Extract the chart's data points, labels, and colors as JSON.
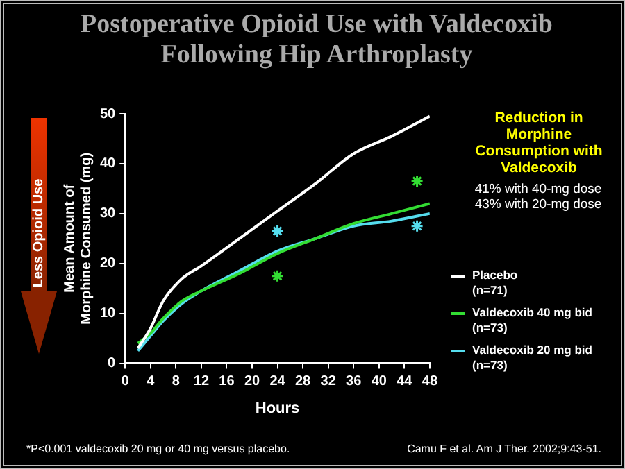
{
  "chart_data": {
    "type": "line",
    "title": "Postoperative Opioid Use with Valdecoxib Following Hip Arthroplasty",
    "xlabel": "Hours",
    "ylabel": "Mean Amount of Morphine Consumed (mg)",
    "xlim": [
      0,
      48
    ],
    "xticks": [
      0,
      4,
      8,
      12,
      16,
      20,
      24,
      28,
      32,
      36,
      40,
      44,
      48
    ],
    "ylim": [
      0,
      50
    ],
    "yticks": [
      0,
      10,
      20,
      30,
      40,
      50
    ],
    "grid": false,
    "legend": "right",
    "marker": "none",
    "line_style": "solid",
    "series": [
      {
        "name": "Placebo (n=71)",
        "color": "#ffffff",
        "x": [
          2,
          4,
          6,
          9,
          12,
          18,
          24,
          30,
          36,
          42,
          48
        ],
        "values": [
          3,
          7,
          12.5,
          17,
          19.5,
          25,
          30.5,
          36,
          42,
          45.5,
          49.5
        ]
      },
      {
        "name": "Valdecoxib 40 mg bid (n=73)",
        "color": "#33dd33",
        "x": [
          2,
          4,
          6,
          9,
          12,
          18,
          24,
          30,
          36,
          42,
          48
        ],
        "values": [
          4,
          6,
          9,
          12.5,
          14.5,
          18,
          22,
          25,
          28,
          30,
          32
        ]
      },
      {
        "name": "Valdecoxib 20 mg bid (n=73)",
        "color": "#55ddee",
        "x": [
          2,
          4,
          6,
          9,
          12,
          18,
          24,
          30,
          36,
          42,
          48
        ],
        "values": [
          2.5,
          5.5,
          8.5,
          12,
          14.5,
          18.5,
          22.5,
          25,
          27.5,
          28.5,
          30
        ]
      },
      {
        "type": "scatter",
        "marker": "cross",
        "color": "#33dd33",
        "x": [
          24,
          46
        ],
        "values": [
          17.5,
          36.5
        ]
      },
      {
        "type": "scatter",
        "marker": "cross",
        "color": "#55ddee",
        "x": [
          24,
          46
        ],
        "values": [
          26.5,
          27.5
        ]
      }
    ],
    "annotations": [
      "Less Opioid Use",
      "Reduction in Morphine Consumption with Valdecoxib",
      "41% with 40-mg dose",
      "43% with 20-mg dose",
      "*P<0.001 valdecoxib 20 mg or 40 mg versus placebo.",
      "Camu F et al. Am J Ther. 2002;9:43-51."
    ]
  }
}
